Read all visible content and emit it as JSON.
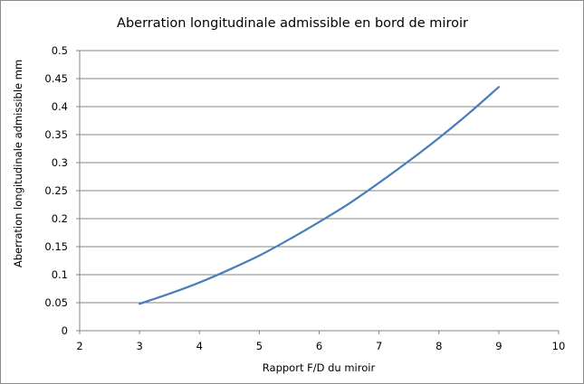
{
  "chart_data": {
    "type": "line",
    "title": "Aberration longitudinale admissible en bord de miroir",
    "xlabel": "Rapport F/D du miroir",
    "ylabel": "Aberration longitudinale admissible mm",
    "xlim": [
      2,
      10
    ],
    "ylim": [
      0,
      0.5
    ],
    "x_ticks": [
      "2",
      "3",
      "4",
      "5",
      "6",
      "7",
      "8",
      "9",
      "10"
    ],
    "y_ticks": [
      "0",
      "0.05",
      "0.1",
      "0.15",
      "0.2",
      "0.25",
      "0.3",
      "0.35",
      "0.4",
      "0.45",
      "0.5"
    ],
    "grid": "horizontal",
    "legend": "none",
    "series": [
      {
        "color": "#4a7ebb",
        "x": [
          3,
          3.5,
          4,
          4.5,
          5,
          5.5,
          6,
          6.5,
          7,
          7.5,
          8,
          8.5,
          9
        ],
        "y": [
          0.048,
          0.066,
          0.086,
          0.109,
          0.134,
          0.163,
          0.194,
          0.227,
          0.264,
          0.303,
          0.344,
          0.388,
          0.435
        ]
      }
    ]
  }
}
